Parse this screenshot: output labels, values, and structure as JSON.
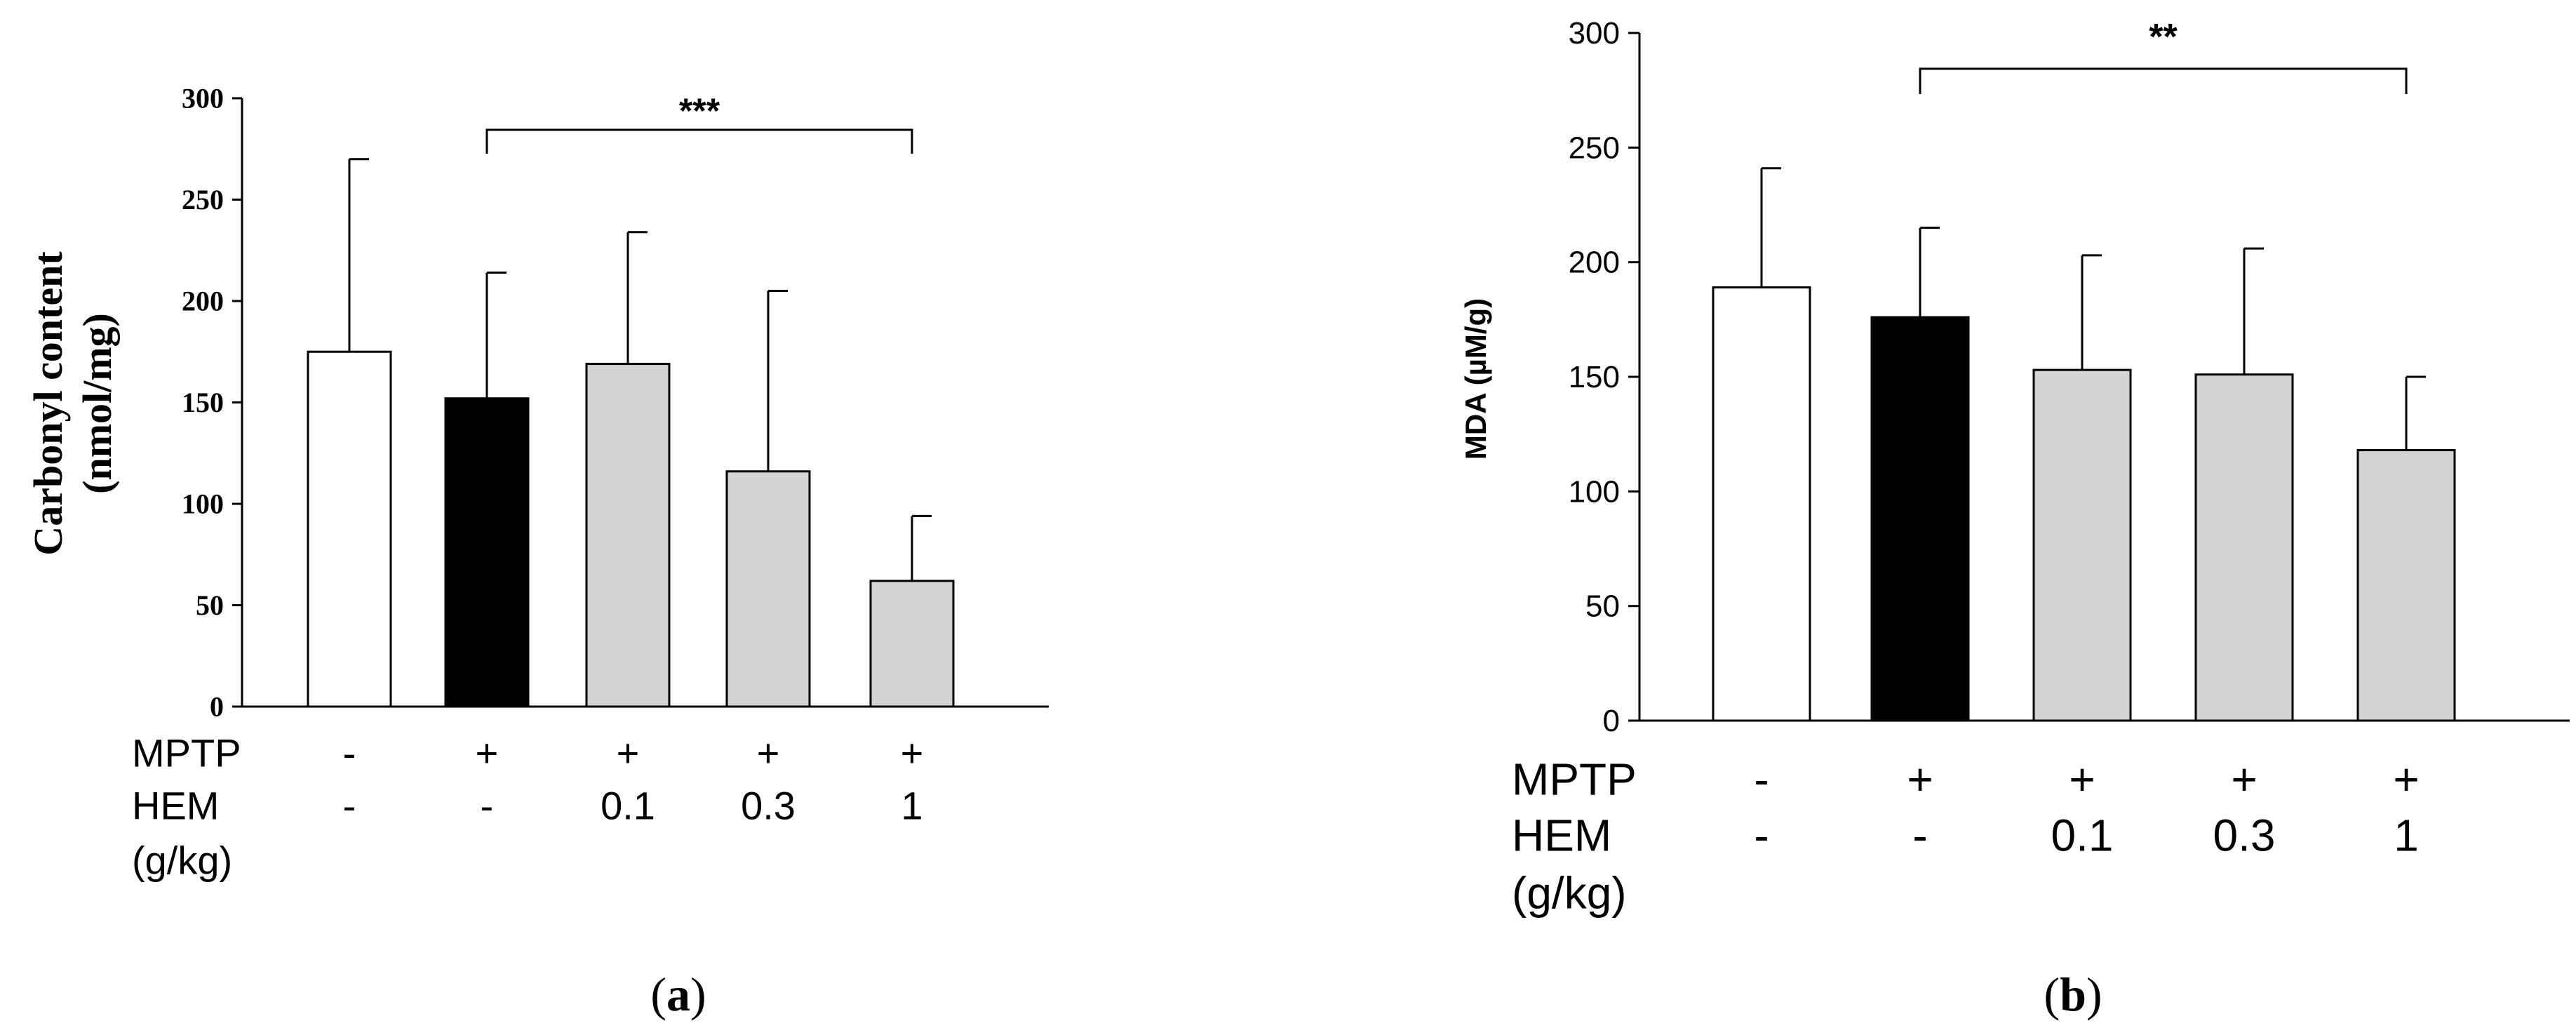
{
  "panels": [
    {
      "caption": "(a)",
      "caption_letter": "a",
      "chart_data": {
        "type": "bar",
        "ylabel_line1": "Carbonyl content",
        "ylabel_line2": "(nmol/mg)",
        "ylim": [
          0,
          300
        ],
        "yticks": [
          0,
          50,
          100,
          150,
          200,
          250,
          300
        ],
        "categories": [
          "- / -",
          "+ / -",
          "+ / 0.1",
          "+ / 0.3",
          "+ / 1"
        ],
        "values": [
          175,
          152,
          169,
          116,
          62
        ],
        "errors": [
          95,
          62,
          65,
          89,
          32
        ],
        "bar_colors": [
          "#ffffff",
          "#000000",
          "#d3d3d3",
          "#d3d3d3",
          "#d3d3d3"
        ],
        "significance": {
          "label": "***",
          "from_index": 1,
          "to_index": 4
        },
        "treatment_rows": [
          {
            "label": "MPTP",
            "values": [
              "-",
              "+",
              "+",
              "+",
              "+"
            ]
          },
          {
            "label": "HEM",
            "values": [
              "-",
              "-",
              "0.1",
              "0.3",
              "1"
            ]
          }
        ],
        "unit_label": "(g/kg)"
      }
    },
    {
      "caption": "(b)",
      "caption_letter": "b",
      "chart_data": {
        "type": "bar",
        "ylabel": "MDA (µM/g)",
        "ylim": [
          0,
          300
        ],
        "yticks": [
          0,
          50,
          100,
          150,
          200,
          250,
          300
        ],
        "categories": [
          "- / -",
          "+ / -",
          "+ / 0.1",
          "+ / 0.3",
          "+ / 1"
        ],
        "values": [
          189,
          176,
          153,
          151,
          118
        ],
        "errors": [
          52,
          39,
          50,
          55,
          32
        ],
        "bar_colors": [
          "#ffffff",
          "#000000",
          "#d3d3d3",
          "#d3d3d3",
          "#d3d3d3"
        ],
        "significance": {
          "label": "**",
          "from_index": 1,
          "to_index": 4
        },
        "treatment_rows": [
          {
            "label": "MPTP",
            "values": [
              "-",
              "+",
              "+",
              "+",
              "+"
            ]
          },
          {
            "label": "HEM",
            "values": [
              "-",
              "-",
              "0.1",
              "0.3",
              "1"
            ]
          }
        ],
        "unit_label": "(g/kg)"
      }
    }
  ]
}
